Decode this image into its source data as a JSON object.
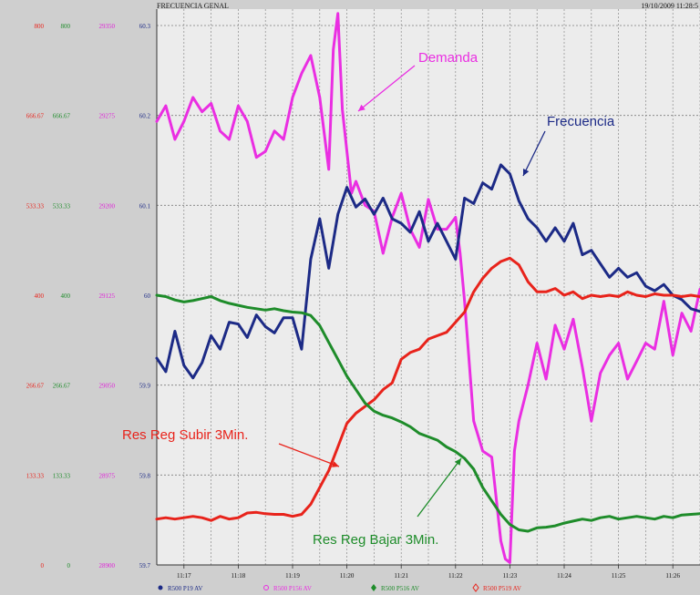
{
  "header": {
    "title": "FRECUENCIA GENAL",
    "datetime": "19/10/2009 11:28:5"
  },
  "chart_data": {
    "type": "line",
    "x_ticks": [
      "11:17",
      "11:18",
      "11:19",
      "11:20",
      "11:21",
      "11:22",
      "11:23",
      "11:24",
      "11:25",
      "11:26"
    ],
    "y_axes": [
      {
        "name": "red",
        "color": "#e8231b",
        "ticks": [
          "0",
          "133.33",
          "266.67",
          "400",
          "533.33",
          "666.67",
          "800"
        ]
      },
      {
        "name": "green",
        "color": "#1e8c2a",
        "ticks": [
          "0",
          "133.33",
          "266.67",
          "400",
          "533.33",
          "666.67",
          "800"
        ]
      },
      {
        "name": "magenta",
        "color": "#e020d8",
        "ticks": [
          "28900",
          "28975",
          "29050",
          "29125",
          "29200",
          "29275",
          "29350"
        ]
      },
      {
        "name": "frequency",
        "color": "#1c2a86",
        "ticks": [
          "59.7",
          "59.8",
          "59.9",
          "60",
          "60.1",
          "60.2",
          "60.3"
        ]
      }
    ],
    "xlim": [
      "11:16:30",
      "11:26:30"
    ],
    "grid": true,
    "series": [
      {
        "name": "Demanda",
        "color": "#ea2ee2",
        "axis": "magenta",
        "x": [
          "11:16:30",
          "11:16:40",
          "11:16:50",
          "11:17:00",
          "11:17:10",
          "11:17:20",
          "11:17:30",
          "11:17:40",
          "11:17:50",
          "11:18:00",
          "11:18:10",
          "11:18:20",
          "11:18:30",
          "11:18:40",
          "11:18:50",
          "11:19:00",
          "11:19:10",
          "11:19:20",
          "11:19:30",
          "11:19:40",
          "11:19:45",
          "11:19:50",
          "11:19:55",
          "11:20:00",
          "11:20:05",
          "11:20:10",
          "11:20:20",
          "11:20:30",
          "11:20:40",
          "11:20:50",
          "11:21:00",
          "11:21:10",
          "11:21:20",
          "11:21:30",
          "11:21:40",
          "11:21:50",
          "11:22:00",
          "11:22:05",
          "11:22:10",
          "11:22:20",
          "11:22:30",
          "11:22:40",
          "11:22:45",
          "11:22:50",
          "11:22:55",
          "11:23:00",
          "11:23:05",
          "11:23:10",
          "11:23:20",
          "11:23:30",
          "11:23:40",
          "11:23:50",
          "11:24:00",
          "11:24:10",
          "11:24:20",
          "11:24:30",
          "11:24:40",
          "11:24:50",
          "11:25:00",
          "11:25:10",
          "11:25:20",
          "11:25:30",
          "11:25:40",
          "11:25:50",
          "11:26:00",
          "11:26:10",
          "11:26:20",
          "11:26:30"
        ],
        "y": [
          29270,
          29283,
          29255,
          29270,
          29290,
          29278,
          29285,
          29262,
          29255,
          29283,
          29270,
          29240,
          29245,
          29262,
          29255,
          29290,
          29310,
          29325,
          29290,
          29230,
          29330,
          29360,
          29280,
          29245,
          29210,
          29220,
          29200,
          29195,
          29160,
          29190,
          29210,
          29180,
          29165,
          29205,
          29180,
          29180,
          29190,
          29160,
          29120,
          29020,
          28995,
          28990,
          28955,
          28920,
          28905,
          28902,
          28995,
          29020,
          29050,
          29085,
          29055,
          29100,
          29080,
          29105,
          29065,
          29020,
          29060,
          29075,
          29085,
          29055,
          29070,
          29085,
          29080,
          29120,
          29075,
          29110,
          29095,
          29130
        ]
      },
      {
        "name": "Frecuencia",
        "color": "#1c2a86",
        "axis": "frequency",
        "x": [
          "11:16:30",
          "11:16:40",
          "11:16:50",
          "11:17:00",
          "11:17:10",
          "11:17:20",
          "11:17:30",
          "11:17:40",
          "11:17:50",
          "11:18:00",
          "11:18:10",
          "11:18:20",
          "11:18:30",
          "11:18:40",
          "11:18:50",
          "11:19:00",
          "11:19:10",
          "11:19:20",
          "11:19:30",
          "11:19:40",
          "11:19:50",
          "11:20:00",
          "11:20:10",
          "11:20:20",
          "11:20:30",
          "11:20:40",
          "11:20:50",
          "11:21:00",
          "11:21:10",
          "11:21:20",
          "11:21:30",
          "11:21:40",
          "11:21:50",
          "11:22:00",
          "11:22:10",
          "11:22:20",
          "11:22:30",
          "11:22:40",
          "11:22:50",
          "11:23:00",
          "11:23:10",
          "11:23:20",
          "11:23:30",
          "11:23:40",
          "11:23:50",
          "11:24:00",
          "11:24:10",
          "11:24:20",
          "11:24:30",
          "11:24:40",
          "11:24:50",
          "11:25:00",
          "11:25:10",
          "11:25:20",
          "11:25:30",
          "11:25:40",
          "11:25:50",
          "11:26:00",
          "11:26:10",
          "11:26:20",
          "11:26:30"
        ],
        "y": [
          59.93,
          59.915,
          59.96,
          59.922,
          59.908,
          59.925,
          59.955,
          59.94,
          59.97,
          59.968,
          59.953,
          59.978,
          59.965,
          59.958,
          59.975,
          59.975,
          59.94,
          60.04,
          60.085,
          60.03,
          60.09,
          60.12,
          60.098,
          60.107,
          60.09,
          60.108,
          60.085,
          60.08,
          60.07,
          60.093,
          60.06,
          60.08,
          60.06,
          60.04,
          60.108,
          60.102,
          60.125,
          60.118,
          60.145,
          60.135,
          60.105,
          60.085,
          60.075,
          60.06,
          60.075,
          60.06,
          60.08,
          60.045,
          60.05,
          60.035,
          60.02,
          60.03,
          60.02,
          60.025,
          60.01,
          60.005,
          60.012,
          60.0,
          59.995,
          59.985,
          59.982
        ]
      },
      {
        "name": "Res Reg Subir 3Min.",
        "color": "#e8231b",
        "axis": "red",
        "x": [
          "11:16:30",
          "11:16:40",
          "11:16:50",
          "11:17:00",
          "11:17:10",
          "11:17:20",
          "11:17:30",
          "11:17:40",
          "11:17:50",
          "11:18:00",
          "11:18:10",
          "11:18:20",
          "11:18:30",
          "11:18:40",
          "11:18:50",
          "11:19:00",
          "11:19:10",
          "11:19:20",
          "11:19:30",
          "11:19:40",
          "11:19:50",
          "11:20:00",
          "11:20:10",
          "11:20:20",
          "11:20:30",
          "11:20:40",
          "11:20:50",
          "11:21:00",
          "11:21:10",
          "11:21:20",
          "11:21:30",
          "11:21:40",
          "11:21:50",
          "11:22:00",
          "11:22:10",
          "11:22:20",
          "11:22:30",
          "11:22:40",
          "11:22:50",
          "11:23:00",
          "11:23:10",
          "11:23:20",
          "11:23:30",
          "11:23:40",
          "11:23:50",
          "11:24:00",
          "11:24:10",
          "11:24:20",
          "11:24:30",
          "11:24:40",
          "11:24:50",
          "11:25:00",
          "11:25:10",
          "11:25:20",
          "11:25:30",
          "11:25:40",
          "11:25:50",
          "11:26:00",
          "11:26:10",
          "11:26:20",
          "11:26:30"
        ],
        "y": [
          68,
          70,
          68,
          70,
          72,
          70,
          66,
          72,
          68,
          70,
          77,
          78,
          76,
          75,
          75,
          72,
          75,
          90,
          115,
          140,
          175,
          210,
          225,
          235,
          245,
          260,
          270,
          305,
          315,
          320,
          335,
          340,
          345,
          360,
          375,
          405,
          425,
          440,
          450,
          455,
          445,
          420,
          405,
          405,
          410,
          400,
          405,
          395,
          400,
          398,
          400,
          398,
          405,
          400,
          398,
          402,
          400,
          400,
          398,
          400,
          398
        ]
      },
      {
        "name": "Res Reg Bajar 3Min.",
        "color": "#1e8c2a",
        "axis": "green",
        "x": [
          "11:16:30",
          "11:16:40",
          "11:16:50",
          "11:17:00",
          "11:17:10",
          "11:17:20",
          "11:17:30",
          "11:17:40",
          "11:17:50",
          "11:18:00",
          "11:18:10",
          "11:18:20",
          "11:18:30",
          "11:18:40",
          "11:18:50",
          "11:19:00",
          "11:19:10",
          "11:19:20",
          "11:19:30",
          "11:19:40",
          "11:19:50",
          "11:20:00",
          "11:20:10",
          "11:20:20",
          "11:20:30",
          "11:20:40",
          "11:20:50",
          "11:21:00",
          "11:21:10",
          "11:21:20",
          "11:21:30",
          "11:21:40",
          "11:21:50",
          "11:22:00",
          "11:22:10",
          "11:22:20",
          "11:22:30",
          "11:22:40",
          "11:22:50",
          "11:23:00",
          "11:23:10",
          "11:23:20",
          "11:23:30",
          "11:23:40",
          "11:23:50",
          "11:24:00",
          "11:24:10",
          "11:24:20",
          "11:24:30",
          "11:24:40",
          "11:24:50",
          "11:25:00",
          "11:25:10",
          "11:25:20",
          "11:25:30",
          "11:25:40",
          "11:25:50",
          "11:26:00",
          "11:26:10",
          "11:26:20",
          "11:26:30"
        ],
        "y": [
          400,
          398,
          393,
          390,
          392,
          395,
          398,
          392,
          388,
          385,
          382,
          380,
          378,
          380,
          377,
          375,
          374,
          370,
          355,
          330,
          305,
          280,
          260,
          240,
          228,
          222,
          218,
          212,
          205,
          195,
          190,
          185,
          175,
          168,
          158,
          142,
          115,
          95,
          75,
          60,
          52,
          50,
          55,
          56,
          58,
          62,
          65,
          68,
          66,
          70,
          72,
          68,
          70,
          72,
          70,
          68,
          72,
          70,
          74,
          75,
          76
        ]
      }
    ],
    "annotations": [
      {
        "text": "Demanda",
        "color": "#ea2ee2"
      },
      {
        "text": "Frecuencia",
        "color": "#1c2a86"
      },
      {
        "text": "Res Reg Subir 3Min.",
        "color": "#e8231b"
      },
      {
        "text": "Res Reg Bajar 3Min.",
        "color": "#1e8c2a"
      }
    ],
    "legend": [
      {
        "label": "R500 P19 AV",
        "color": "#1c2a86",
        "marker": "dot"
      },
      {
        "label": "R500 P156 AV",
        "color": "#ea2ee2",
        "marker": "circle"
      },
      {
        "label": "R500 P516 AV",
        "color": "#1e8c2a",
        "marker": "diamond"
      },
      {
        "label": "R500 P519 AV",
        "color": "#e8231b",
        "marker": "diamond-open"
      }
    ]
  }
}
